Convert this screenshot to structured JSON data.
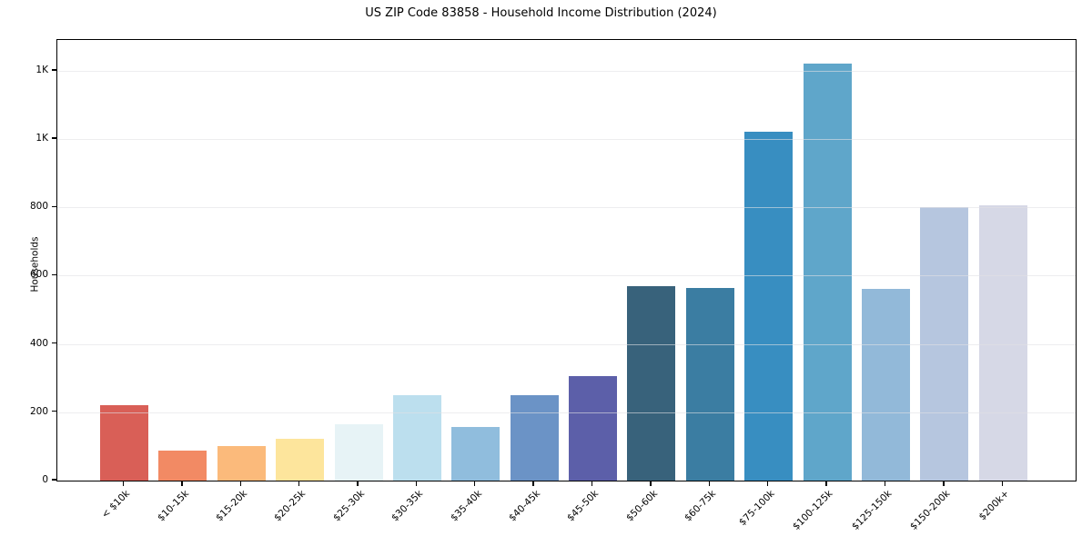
{
  "title": "US ZIP Code 83858 - Household Income Distribution (2024)",
  "chart_data": {
    "type": "bar",
    "title": "US ZIP Code 83858 - Household Income Distribution (2024)",
    "xlabel": "",
    "ylabel": "Households",
    "categories": [
      "< $10k",
      "$10-15k",
      "$15-20k",
      "$20-25k",
      "$25-30k",
      "$30-35k",
      "$35-40k",
      "$40-45k",
      "$45-50k",
      "$50-60k",
      "$60-75k",
      "$75-100k",
      "$100-125k",
      "$125-150k",
      "$150-200k",
      "$200k+"
    ],
    "values": [
      222,
      89,
      102,
      122,
      166,
      251,
      157,
      251,
      305,
      569,
      564,
      1022,
      1221,
      560,
      800,
      807
    ],
    "bar_colors": [
      "#d95f57",
      "#f28a64",
      "#fbba7b",
      "#fde59c",
      "#e7f3f6",
      "#bcdfee",
      "#90bddd",
      "#6b93c6",
      "#5c5fa9",
      "#38627b",
      "#3b7da2",
      "#388ec1",
      "#5fa6ca",
      "#92b9d9",
      "#b6c6df",
      "#d6d8e6"
    ],
    "yticks": {
      "values": [
        0,
        200,
        400,
        600,
        800,
        1000,
        1200
      ],
      "labels": [
        "0",
        "200",
        "400",
        "600",
        "800",
        "1K",
        "1K"
      ]
    },
    "ylim": [
      0,
      1290
    ],
    "grid": "horizontal",
    "legend_position": "none",
    "x_tick_rotation_deg": 45
  },
  "colors": {
    "background": "#ffffff",
    "spine": "#000000",
    "gridline": "#e4e4e7",
    "text": "#000000"
  }
}
